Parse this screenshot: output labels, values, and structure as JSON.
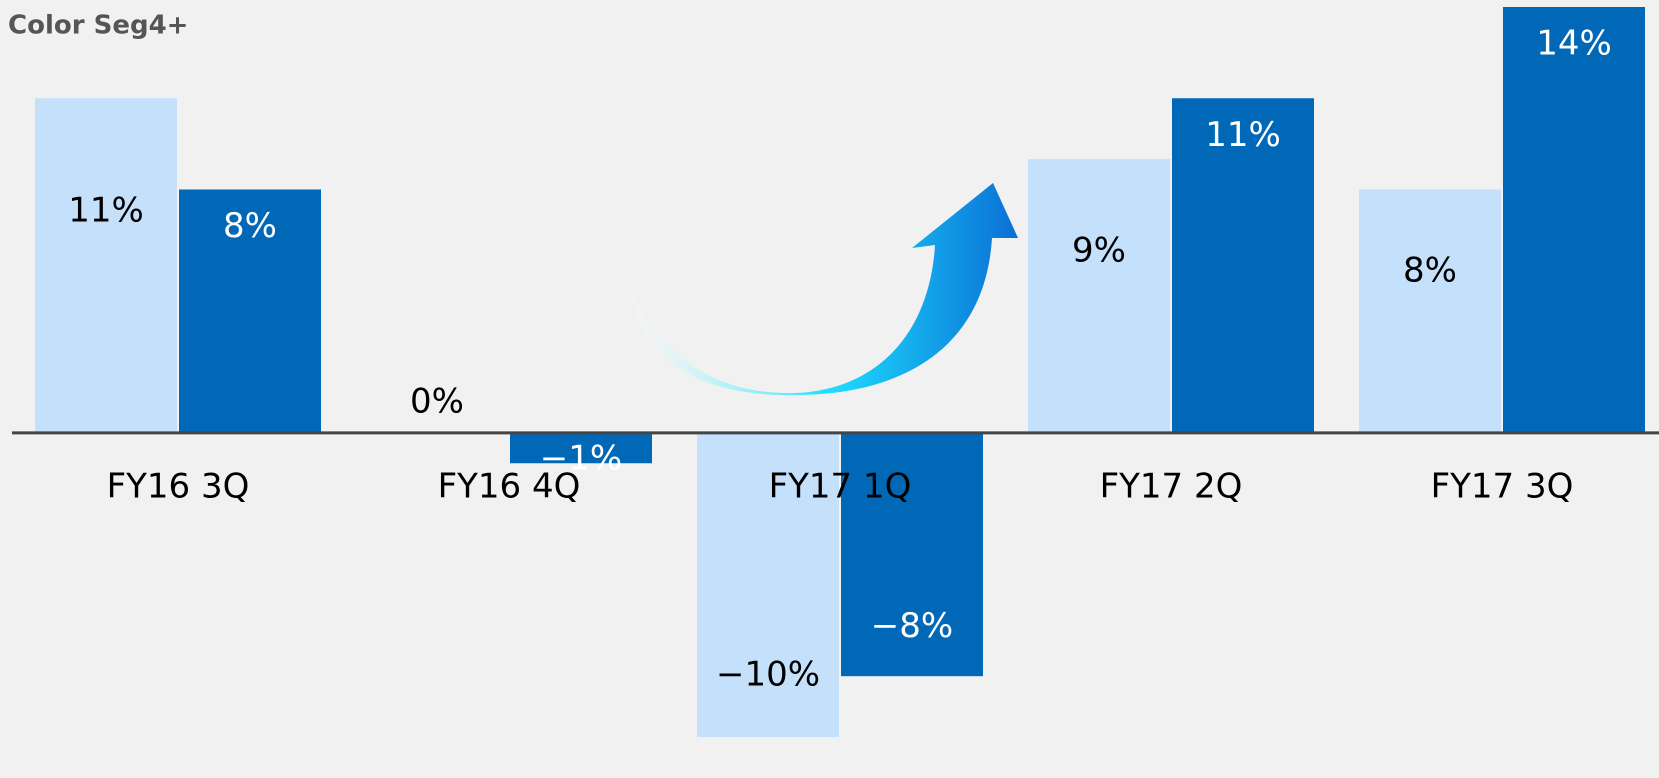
{
  "chart_data": {
    "type": "bar",
    "title": "Color Seg4+",
    "categories": [
      "FY16 3Q",
      "FY16 4Q",
      "FY17 1Q",
      "FY17 2Q",
      "FY17 3Q"
    ],
    "series": [
      {
        "color": "#c5e0fa",
        "values": [
          11,
          0,
          -10,
          9,
          8
        ],
        "value_labels": [
          "11%",
          "0%",
          "−10%",
          "9%",
          "8%"
        ]
      },
      {
        "color": "#0068b7",
        "values": [
          8,
          -1,
          -8,
          11,
          14
        ],
        "value_labels": [
          "8%",
          "−1%",
          "−8%",
          "11%",
          "14%"
        ]
      }
    ],
    "ylim": [
      -10,
      14
    ]
  }
}
